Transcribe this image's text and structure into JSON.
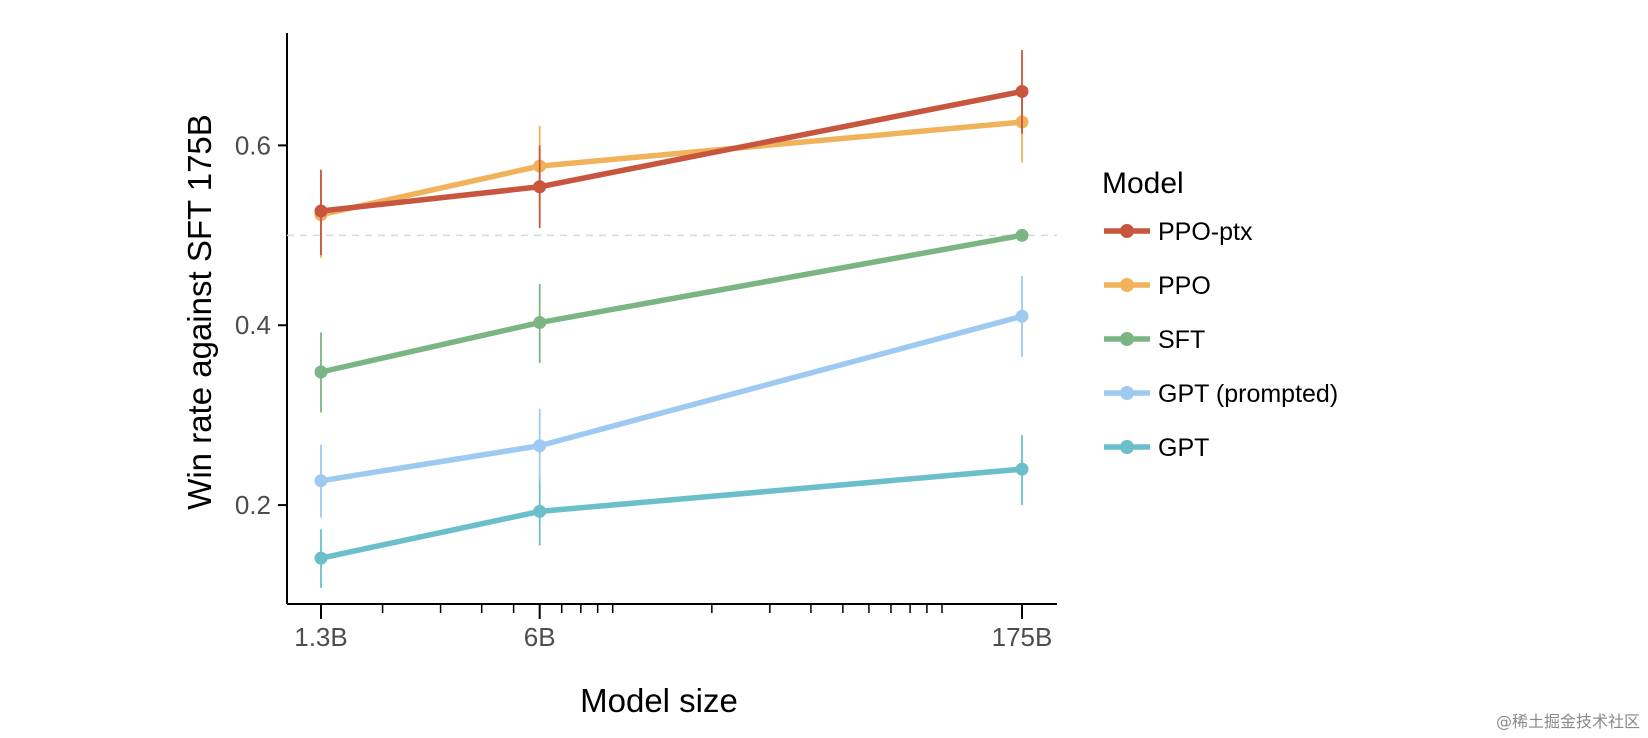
{
  "chart_data": {
    "type": "line",
    "title": "",
    "xlabel": "Model size",
    "ylabel": "Win rate against SFT 175B",
    "x_scale": "log",
    "categories": [
      "1.3B",
      "6B",
      "175B"
    ],
    "x_params_billions": [
      1.3,
      6,
      175
    ],
    "ylim": [
      0.09,
      0.725
    ],
    "y_ticks": [
      0.2,
      0.4,
      0.6
    ],
    "y_tick_labels": [
      "0.2",
      "0.4",
      "0.6"
    ],
    "reference_line": 0.5,
    "legend_title": "Model",
    "legend_position": "right",
    "series": [
      {
        "name": "PPO-ptx",
        "color": "#c8553d",
        "values": [
          0.527,
          0.554,
          0.66
        ],
        "err_low": [
          0.478,
          0.508,
          0.613
        ],
        "err_high": [
          0.573,
          0.6,
          0.706
        ]
      },
      {
        "name": "PPO",
        "color": "#f0b35c",
        "values": [
          0.523,
          0.577,
          0.626
        ],
        "err_low": [
          0.475,
          0.53,
          0.581
        ],
        "err_high": [
          0.568,
          0.622,
          0.668
        ]
      },
      {
        "name": "SFT",
        "color": "#7bb583",
        "values": [
          0.348,
          0.403,
          0.5
        ],
        "err_low": [
          0.303,
          0.358,
          0.5
        ],
        "err_high": [
          0.392,
          0.446,
          0.5
        ]
      },
      {
        "name": "GPT (prompted)",
        "color": "#9ec9f0",
        "values": [
          0.227,
          0.266,
          0.41
        ],
        "err_low": [
          0.186,
          0.227,
          0.365
        ],
        "err_high": [
          0.267,
          0.307,
          0.455
        ]
      },
      {
        "name": "GPT",
        "color": "#6bbfca",
        "values": [
          0.141,
          0.193,
          0.24
        ],
        "err_low": [
          0.108,
          0.155,
          0.2
        ],
        "err_high": [
          0.173,
          0.232,
          0.278
        ]
      }
    ]
  },
  "watermark": "@稀土掘金技术社区"
}
